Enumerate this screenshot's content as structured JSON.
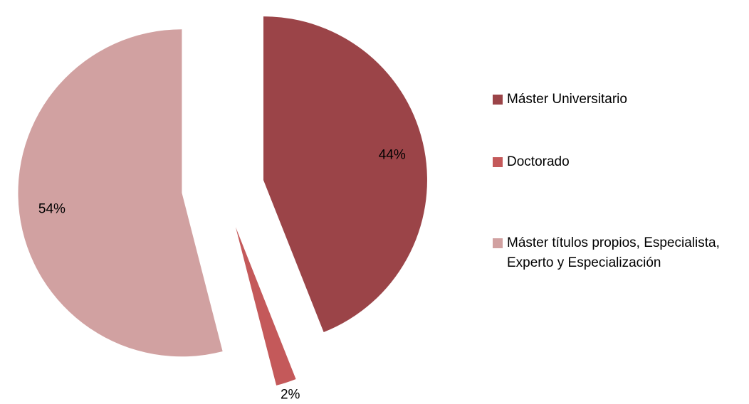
{
  "chart_data": {
    "type": "pie",
    "categories": [
      "Máster Universitario",
      "Doctorado",
      "Máster títulos propios, Especialista, Experto y Especialización"
    ],
    "values": [
      44,
      2,
      54
    ],
    "value_labels": [
      "44%",
      "2%",
      "54%"
    ],
    "colors": [
      "#9b4448",
      "#c4595a",
      "#d1a1a1"
    ],
    "legend": "right"
  }
}
